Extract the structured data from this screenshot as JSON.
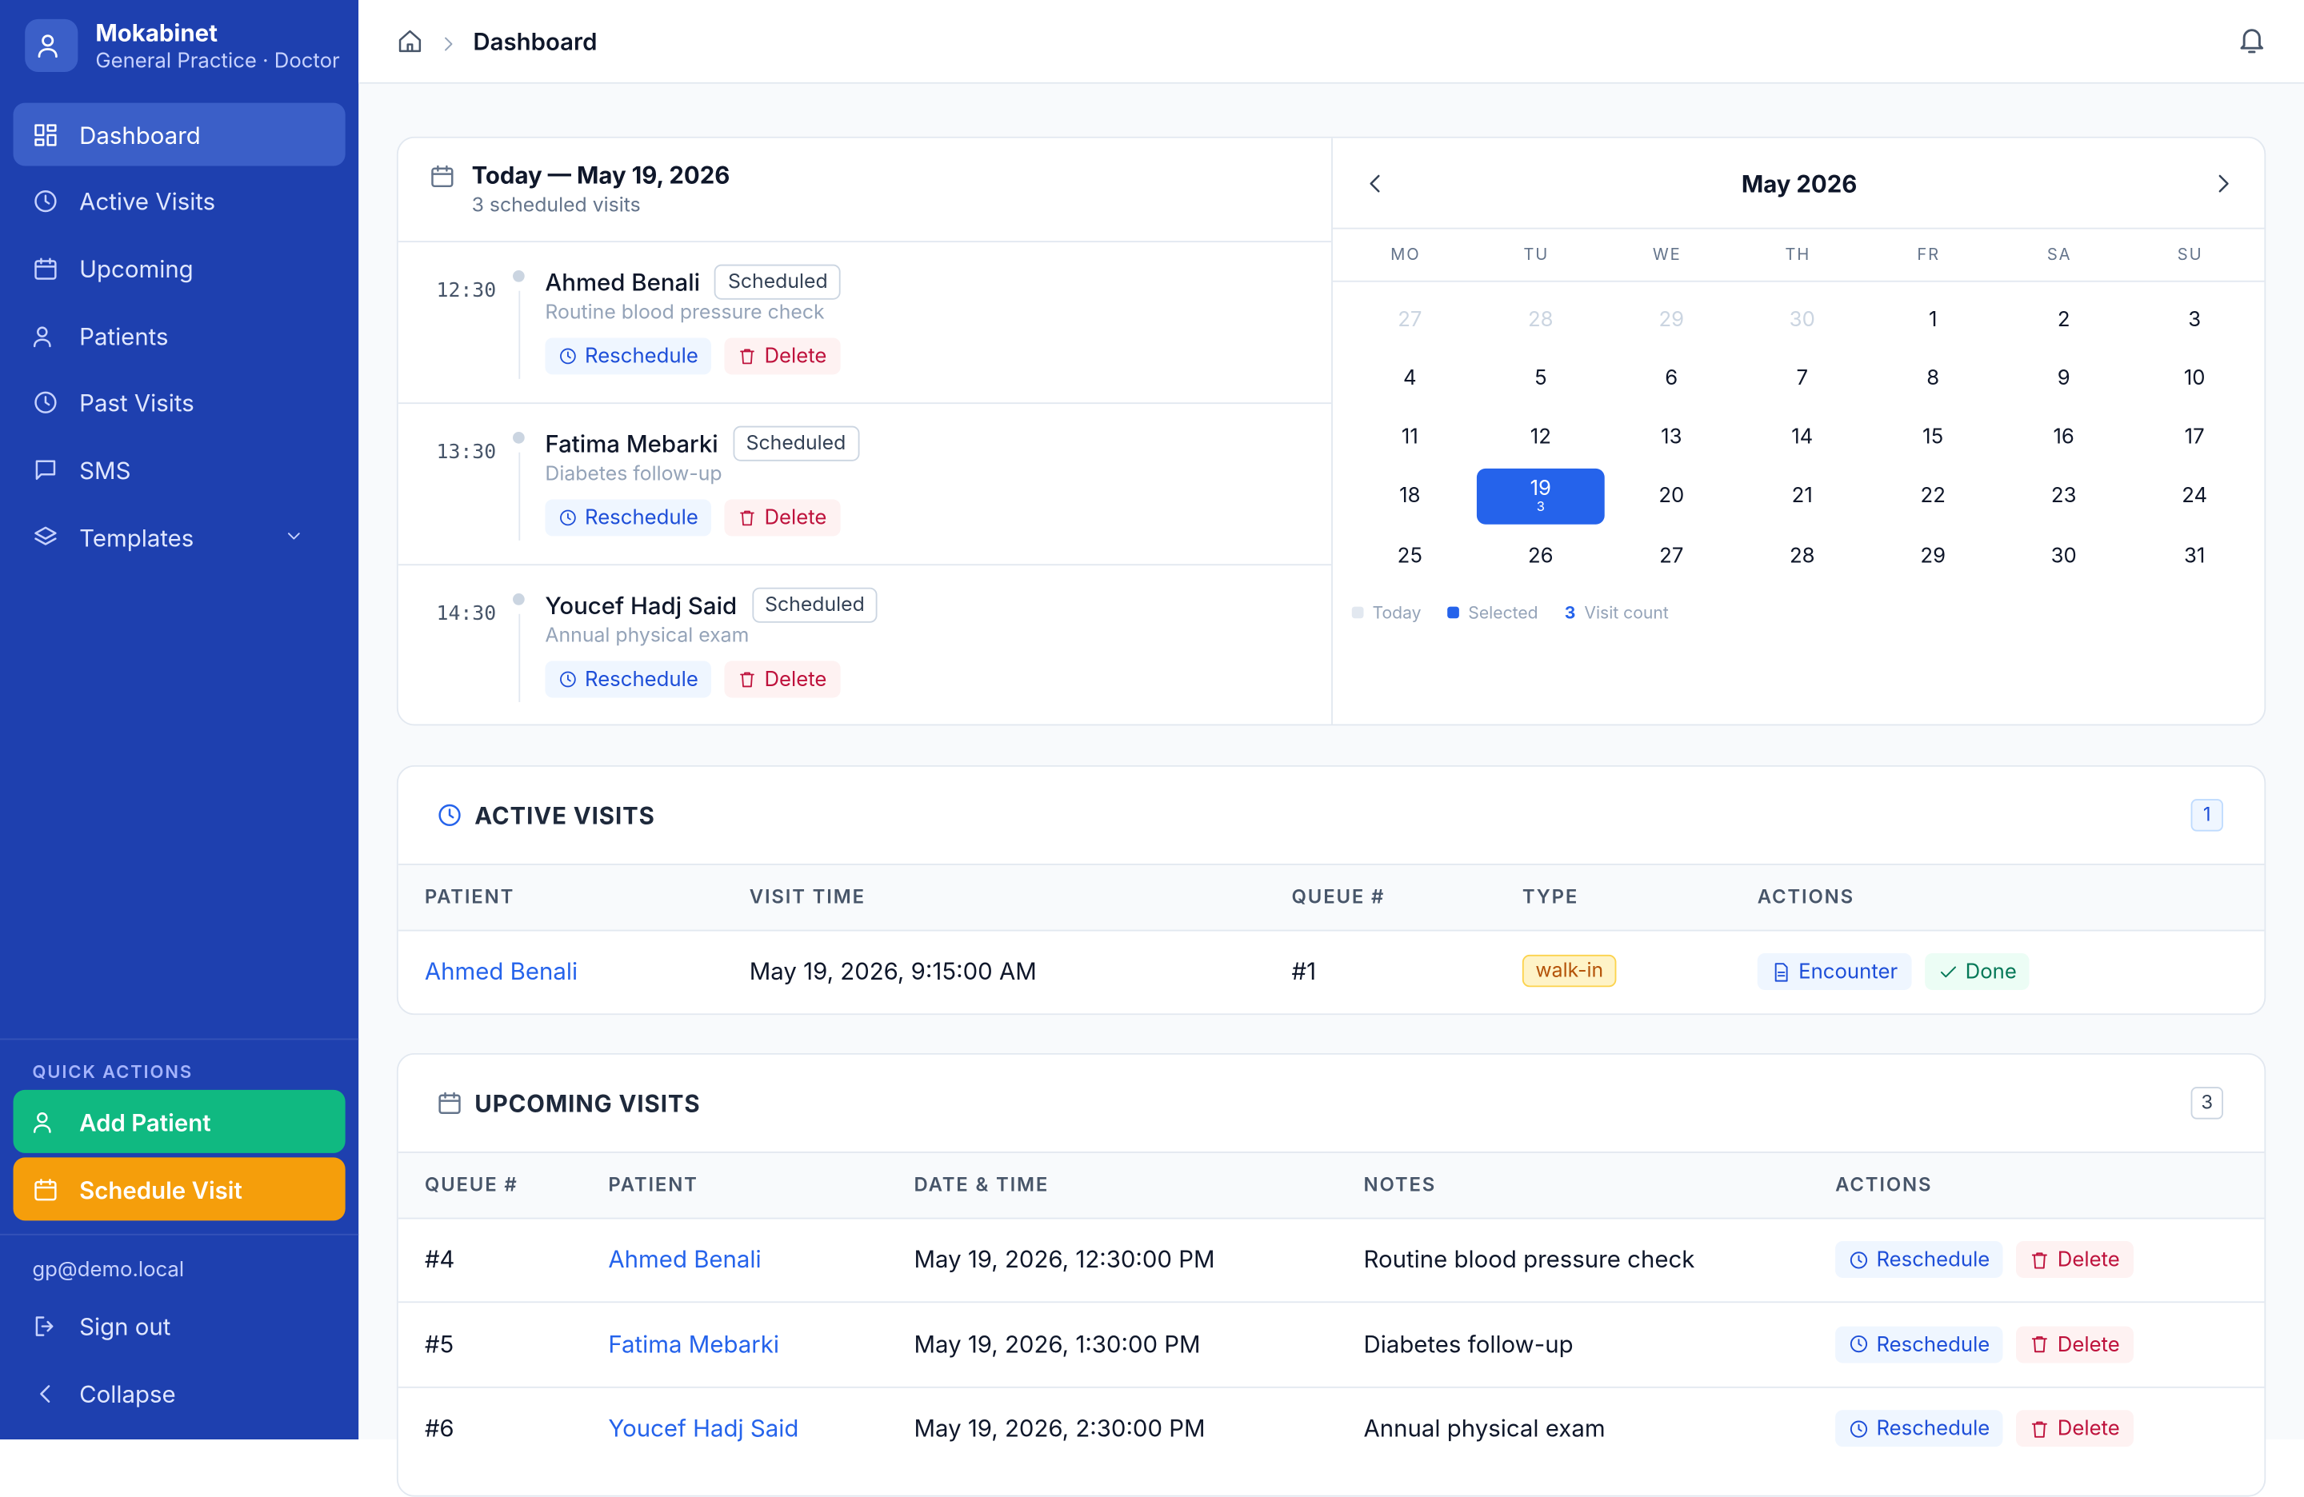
{
  "sidebar": {
    "brand": {
      "name": "Mokabinet",
      "subtitle": "General Practice · Doctor"
    },
    "nav": [
      "Dashboard",
      "Active Visits",
      "Upcoming",
      "Patients",
      "Past Visits",
      "SMS",
      "Templates"
    ],
    "active_nav": 0,
    "quick_actions": {
      "title": "QUICK ACTIONS",
      "buttons": [
        "Add Patient",
        "Schedule Visit"
      ]
    },
    "email": "gp@demo.local",
    "sign_out": "Sign out",
    "collapse": "Collapse"
  },
  "header": {
    "breadcrumb": "Dashboard"
  },
  "today": {
    "title": "Today — May 19, 2026",
    "subtitle": "3 scheduled visits",
    "appointments": [
      {
        "time": "12:30",
        "name": "Ahmed Benali",
        "status": "Scheduled",
        "note": "Routine blood pressure check"
      },
      {
        "time": "13:30",
        "name": "Fatima Mebarki",
        "status": "Scheduled",
        "note": "Diabetes follow-up"
      },
      {
        "time": "14:30",
        "name": "Youcef Hadj Said",
        "status": "Scheduled",
        "note": "Annual physical exam"
      }
    ],
    "actions": [
      "Reschedule",
      "Delete"
    ]
  },
  "calendar": {
    "month": "May 2026",
    "weekdays": [
      "MO",
      "TU",
      "WE",
      "TH",
      "FR",
      "SA",
      "SU"
    ],
    "leading_days": [
      27,
      28,
      29,
      30
    ],
    "days": [
      1,
      2,
      3,
      4,
      5,
      6,
      7,
      8,
      9,
      10,
      11,
      12,
      13,
      14,
      15,
      16,
      17,
      18,
      19,
      20,
      21,
      22,
      23,
      24,
      25,
      26,
      27,
      28,
      29,
      30,
      31
    ],
    "selected_day": 19,
    "selected_count": 3,
    "legend": [
      {
        "label": "Today"
      },
      {
        "label": "Selected"
      },
      {
        "marker": "3",
        "label": "Visit count"
      }
    ]
  },
  "active_visits": {
    "title": "ACTIVE VISITS",
    "count": 1,
    "columns": [
      "PATIENT",
      "VISIT TIME",
      "QUEUE #",
      "TYPE",
      "ACTIONS"
    ],
    "rows": [
      [
        "Ahmed Benali",
        "May 19, 2026, 9:15:00 AM",
        "#1",
        "walk-in"
      ]
    ],
    "actions": [
      "Encounter",
      "Done"
    ]
  },
  "upcoming_visits": {
    "title": "UPCOMING VISITS",
    "count": 3,
    "columns": [
      "QUEUE #",
      "PATIENT",
      "DATE & TIME",
      "NOTES",
      "ACTIONS"
    ],
    "rows": [
      [
        "#4",
        "Ahmed Benali",
        "May 19, 2026, 12:30:00 PM",
        "Routine blood pressure check"
      ],
      [
        "#5",
        "Fatima Mebarki",
        "May 19, 2026, 1:30:00 PM",
        "Diabetes follow-up"
      ],
      [
        "#6",
        "Youcef Hadj Said",
        "May 19, 2026, 2:30:00 PM",
        "Annual physical exam"
      ]
    ],
    "actions": [
      "Reschedule",
      "Delete"
    ]
  }
}
